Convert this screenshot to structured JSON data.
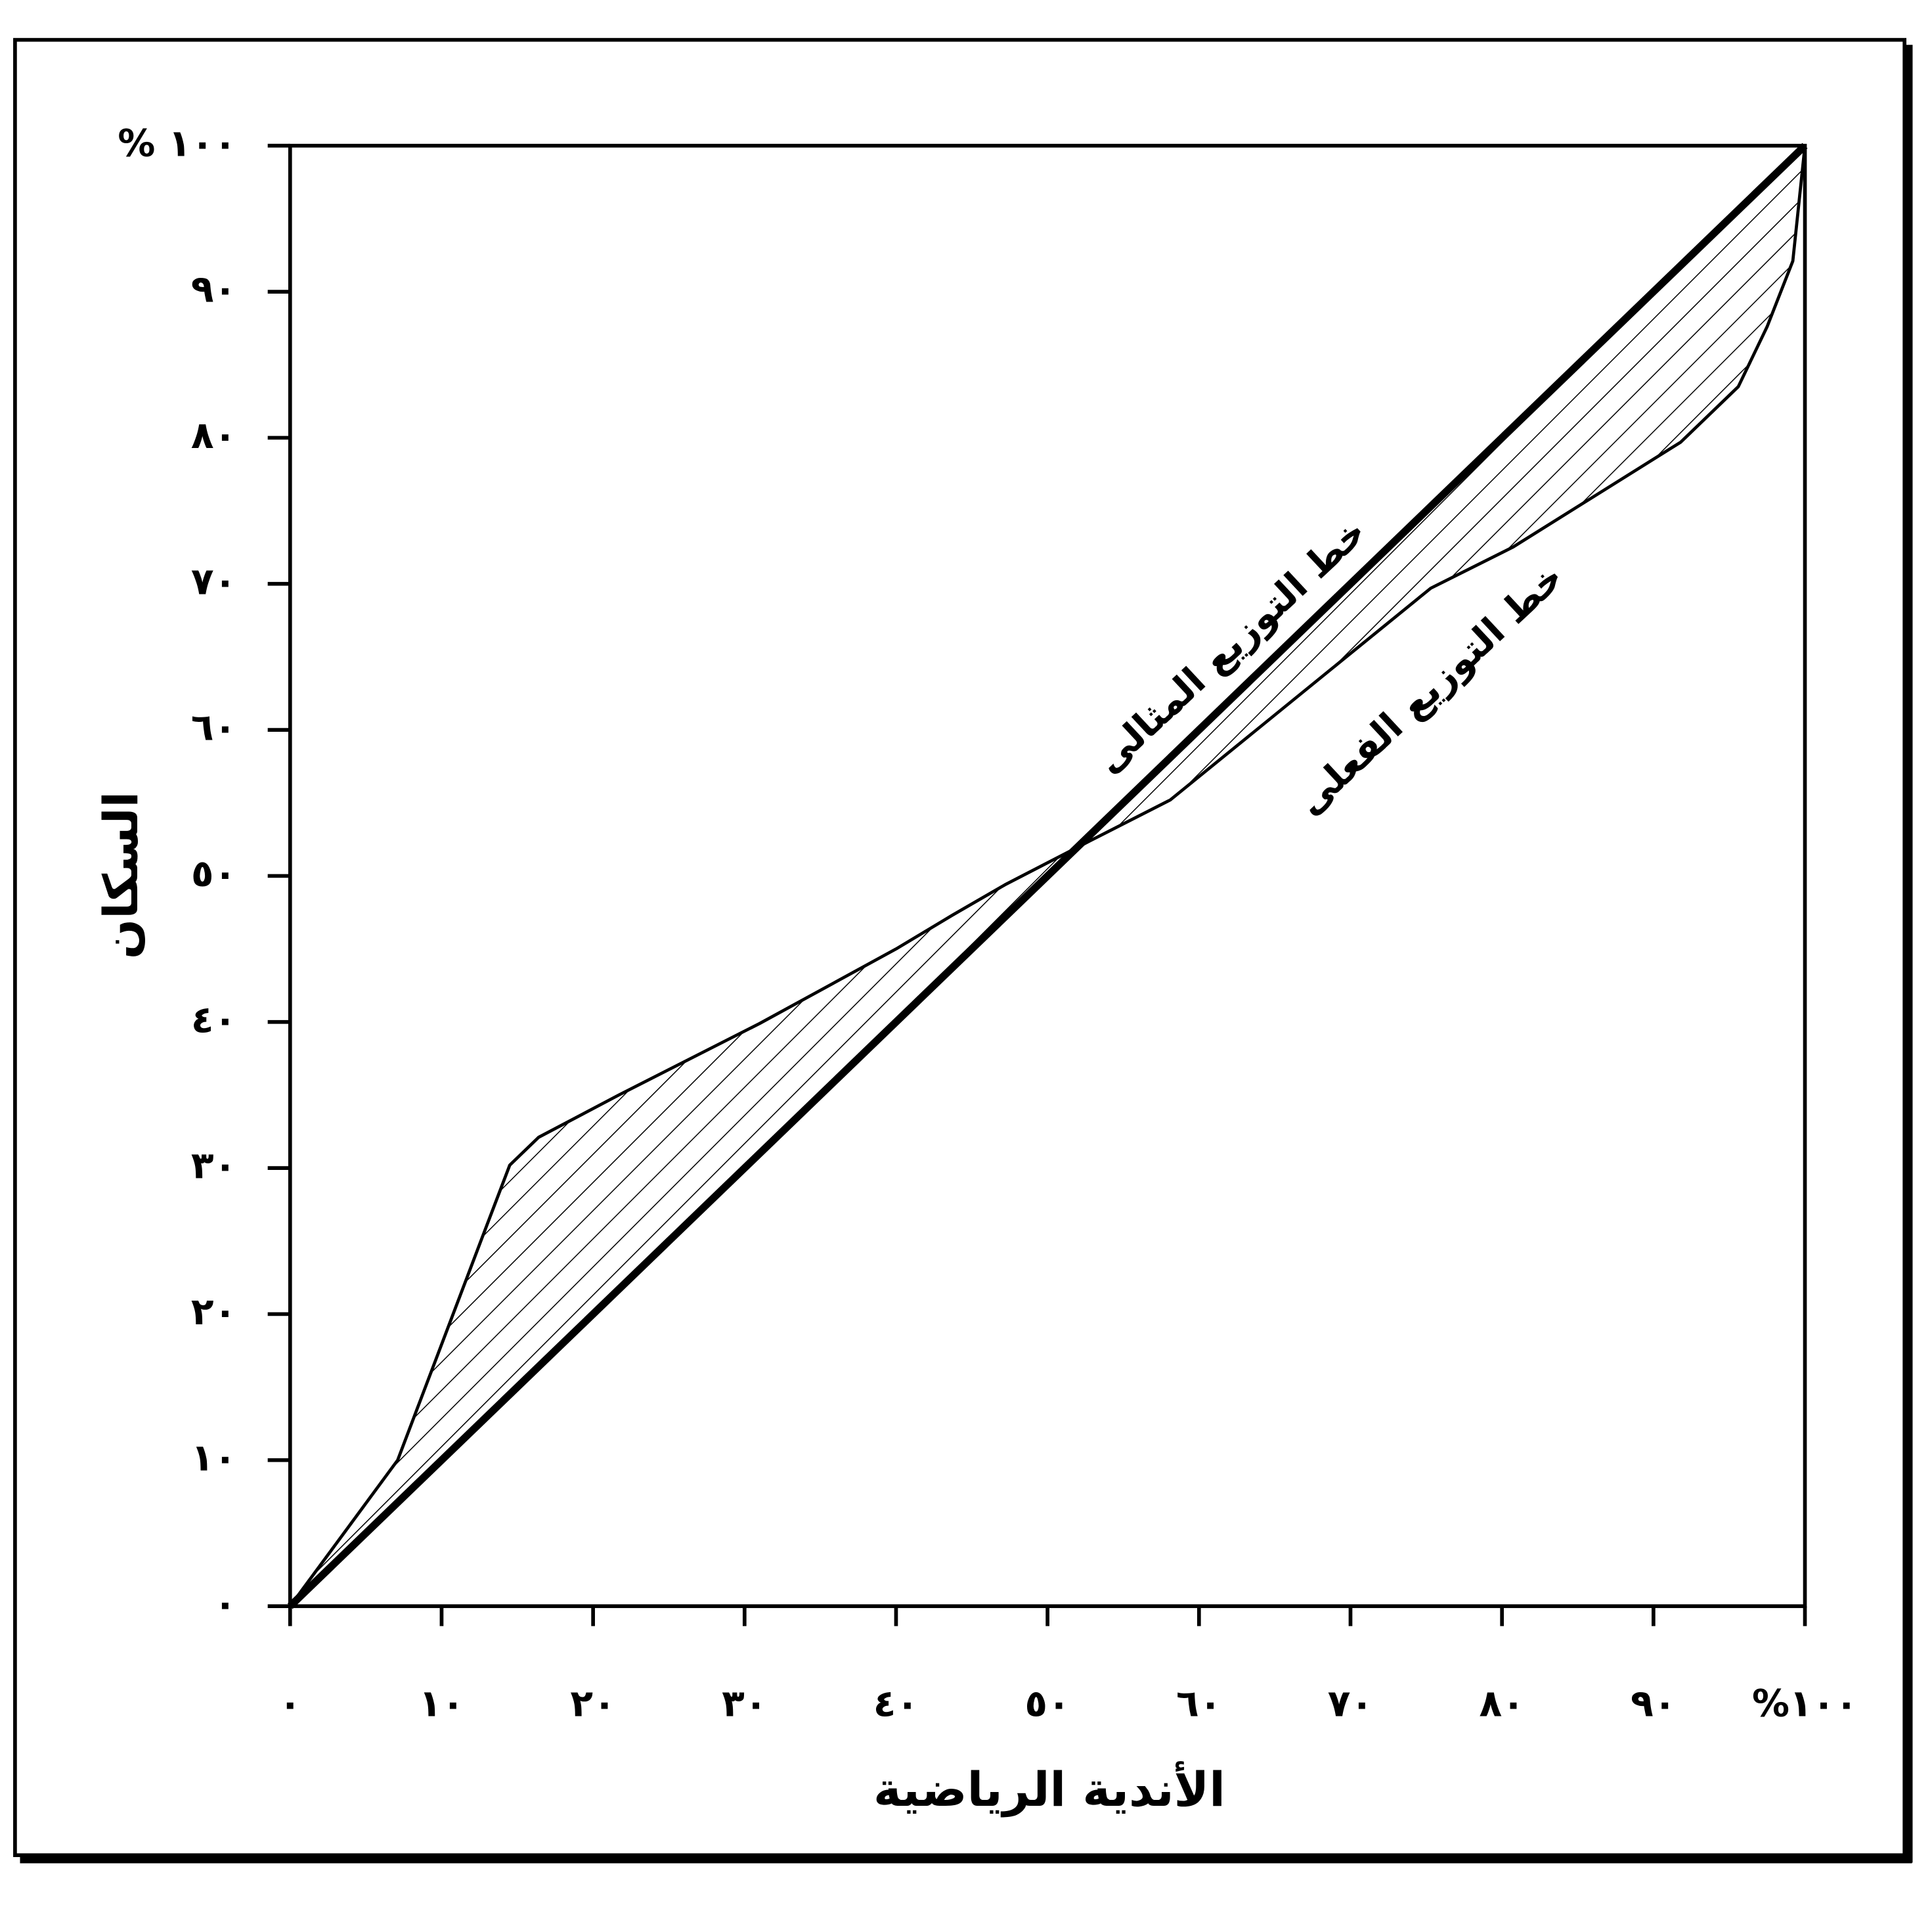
{
  "chart_data": {
    "type": "line",
    "x_label": "الأندية الرياضية",
    "y_label": "السكان",
    "xlim": [
      0,
      100
    ],
    "ylim": [
      0,
      100
    ],
    "xticks": [
      {
        "value": 0,
        "label": "٠"
      },
      {
        "value": 10,
        "label": "١٠"
      },
      {
        "value": 20,
        "label": "٢٠"
      },
      {
        "value": 30,
        "label": "٣٠"
      },
      {
        "value": 40,
        "label": "٤٠"
      },
      {
        "value": 50,
        "label": "٥٠"
      },
      {
        "value": 60,
        "label": "٦٠"
      },
      {
        "value": 70,
        "label": "٧٠"
      },
      {
        "value": 80,
        "label": "٨٠"
      },
      {
        "value": 90,
        "label": "٩٠"
      },
      {
        "value": 100,
        "label": "%١٠٠"
      }
    ],
    "yticks": [
      {
        "value": 0,
        "label": "٠"
      },
      {
        "value": 10,
        "label": "١٠"
      },
      {
        "value": 20,
        "label": "٢٠"
      },
      {
        "value": 30,
        "label": "٣٠"
      },
      {
        "value": 40,
        "label": "٤٠"
      },
      {
        "value": 50,
        "label": "٥٠"
      },
      {
        "value": 60,
        "label": "٦٠"
      },
      {
        "value": 70,
        "label": "٧٠"
      },
      {
        "value": 80,
        "label": "٨٠"
      },
      {
        "value": 90,
        "label": "٩٠"
      },
      {
        "value": 100,
        "label": "% ١٠٠"
      }
    ],
    "series": [
      {
        "name": "خط التوزيع المثالى",
        "color": "#000000",
        "x": [
          0,
          100
        ],
        "values": [
          0,
          100
        ]
      },
      {
        "name": "خط التوزيع الفعلى",
        "color": "#000000",
        "x": [
          0,
          7.1,
          12.7,
          14.5,
          16.4,
          21.7,
          31.0,
          40.0,
          43.7,
          47.2,
          52.8,
          58.1,
          75.3,
          80.7,
          91.8,
          95.6,
          97.5,
          99.2,
          100
        ],
        "values": [
          0,
          10.0,
          25.3,
          30.2,
          32.1,
          35.0,
          39.9,
          45.0,
          47.3,
          49.4,
          52.4,
          55.2,
          69.7,
          72.5,
          79.7,
          83.5,
          87.6,
          92.1,
          100
        ]
      }
    ]
  }
}
